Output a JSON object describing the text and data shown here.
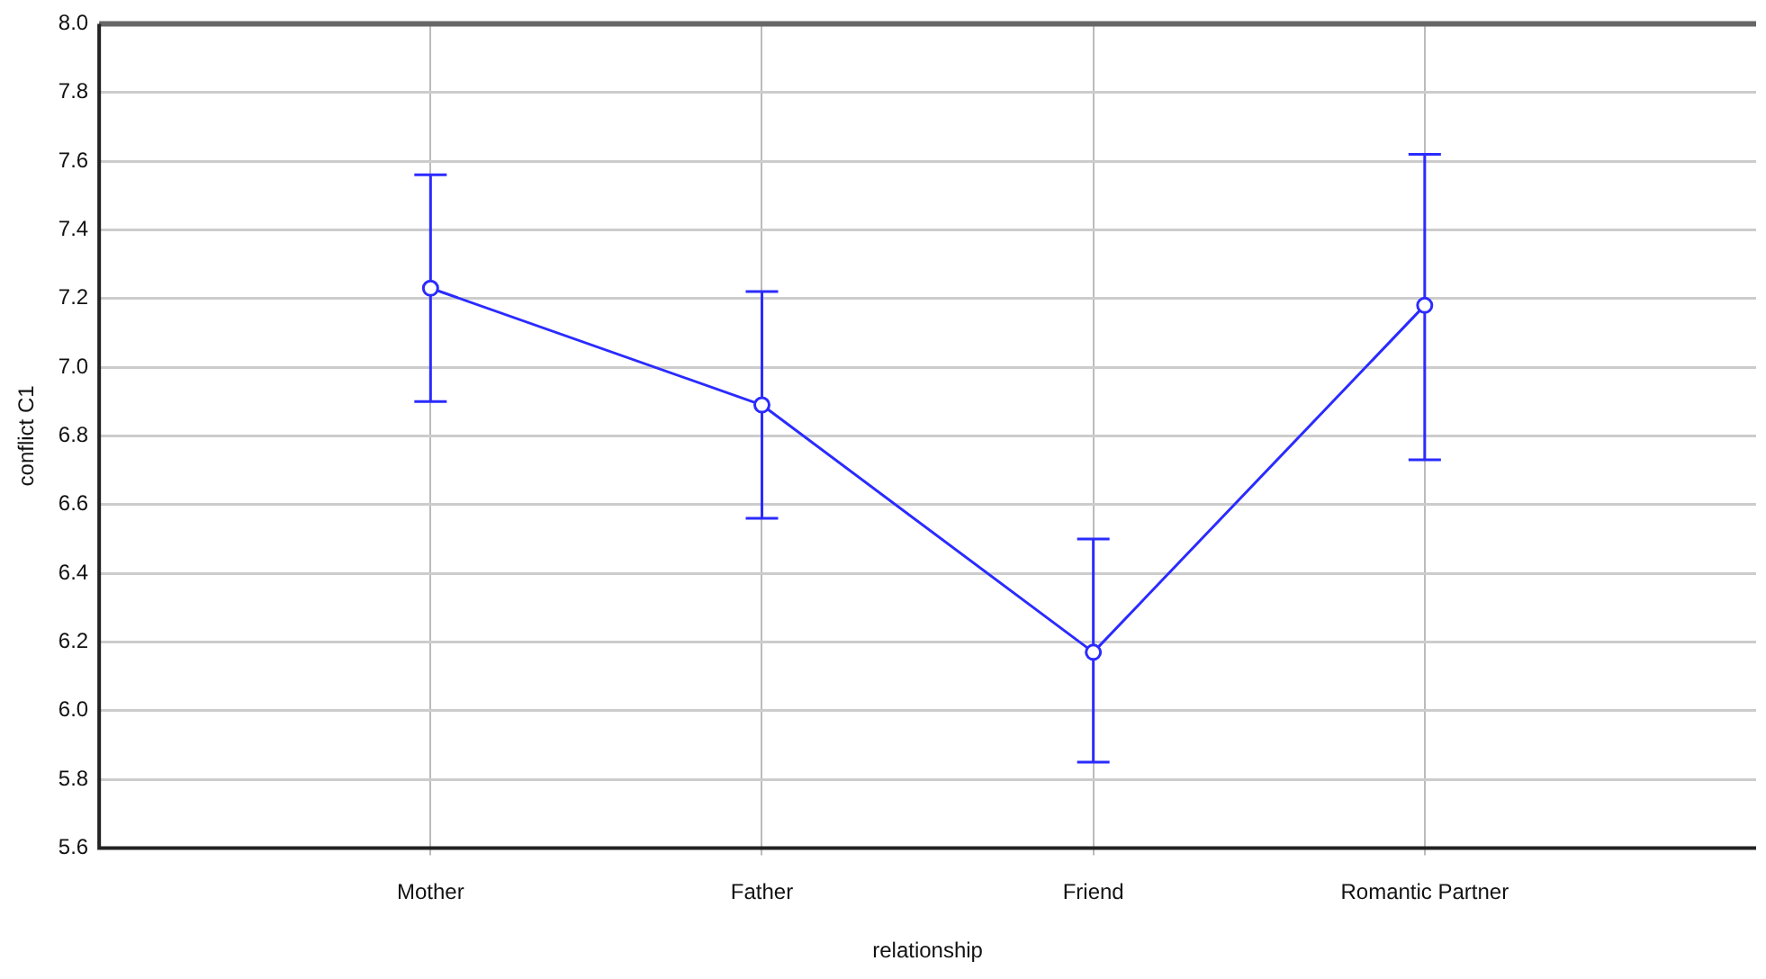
{
  "chart_data": {
    "type": "line",
    "xlabel": "relationship",
    "ylabel": "conflict C1",
    "categories": [
      "Mother",
      "Father",
      "Friend",
      "Romantic Partner"
    ],
    "series": [
      {
        "color": "#2b2bff",
        "values": [
          7.23,
          6.89,
          6.17,
          7.18
        ],
        "errors": [
          [
            6.9,
            7.56
          ],
          [
            6.56,
            7.22
          ],
          [
            5.85,
            6.5
          ],
          [
            6.73,
            7.62
          ]
        ]
      }
    ],
    "ylim": [
      5.6,
      8.0
    ],
    "yticks": [
      5.6,
      5.8,
      {
        "value": 6,
        "label": "6.0"
      },
      6.2,
      6.4,
      6.6,
      6.8,
      {
        "value": 7,
        "label": "7.0"
      },
      7.2,
      7.4,
      7.6,
      7.8,
      {
        "value": 8,
        "label": "8.0"
      }
    ],
    "grid": true,
    "marker": "circle",
    "line_style": "solid",
    "legend": false
  }
}
